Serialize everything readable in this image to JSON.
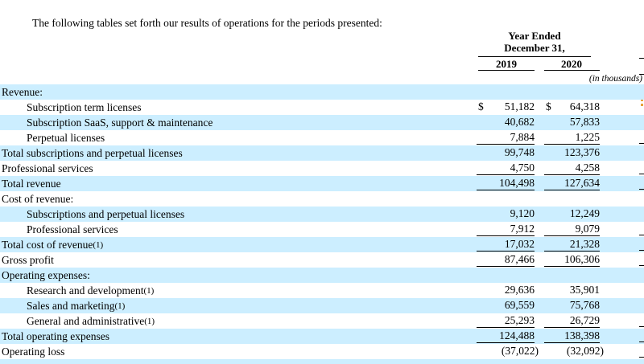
{
  "intro": "The following tables set forth our results of operations for the periods presented:",
  "table": {
    "currency_symbol": "$",
    "header": {
      "period_line1": "Year Ended",
      "period_line2": "December 31,",
      "units_note": "(in thousands)"
    },
    "columns": [
      "2019",
      "2020"
    ],
    "rows": [
      {
        "label": "Revenue:",
        "indent": 0,
        "shaded": true,
        "v2019": "",
        "v2020": ""
      },
      {
        "label": "Subscription term licenses",
        "indent": 1,
        "shaded": false,
        "dollar": true,
        "v2019": "51,182",
        "v2020": "64,318"
      },
      {
        "label": "Subscription SaaS, support & maintenance",
        "indent": 1,
        "shaded": true,
        "v2019": "40,682",
        "v2020": "57,833"
      },
      {
        "label": "Perpetual licenses",
        "indent": 1,
        "shaded": false,
        "rule_below": true,
        "v2019": "7,884",
        "v2020": "1,225"
      },
      {
        "label": "Total subscriptions and perpetual licenses",
        "indent": 0,
        "shaded": true,
        "v2019": "99,748",
        "v2020": "123,376"
      },
      {
        "label": "Professional services",
        "indent": 0,
        "shaded": false,
        "rule_below": true,
        "v2019": "4,750",
        "v2020": "4,258"
      },
      {
        "label": "Total revenue",
        "indent": 0,
        "shaded": true,
        "rule_below": true,
        "v2019": "104,498",
        "v2020": "127,634"
      },
      {
        "label": "Cost of revenue:",
        "indent": 0,
        "shaded": false,
        "v2019": "",
        "v2020": ""
      },
      {
        "label": "Subscriptions and perpetual licenses",
        "indent": 1,
        "shaded": true,
        "v2019": "9,120",
        "v2020": "12,249"
      },
      {
        "label": "Professional services",
        "indent": 1,
        "shaded": false,
        "rule_below": true,
        "v2019": "7,912",
        "v2020": "9,079"
      },
      {
        "label": "Total cost of revenue",
        "footnote": "(1)",
        "indent": 0,
        "shaded": true,
        "rule_below": true,
        "v2019": "17,032",
        "v2020": "21,328"
      },
      {
        "label": "Gross profit",
        "indent": 0,
        "shaded": false,
        "rule_below": true,
        "v2019": "87,466",
        "v2020": "106,306"
      },
      {
        "label": "Operating expenses:",
        "indent": 0,
        "shaded": true,
        "v2019": "",
        "v2020": ""
      },
      {
        "label": "Research and development",
        "footnote": "(1)",
        "indent": 1,
        "shaded": false,
        "v2019": "29,636",
        "v2020": "35,901"
      },
      {
        "label": "Sales and marketing",
        "footnote": "(1)",
        "indent": 1,
        "shaded": true,
        "v2019": "69,559",
        "v2020": "75,768"
      },
      {
        "label": "General and administrative",
        "footnote": "(1)",
        "indent": 1,
        "shaded": false,
        "rule_below": true,
        "v2019": "25,293",
        "v2020": "26,729"
      },
      {
        "label": "Total operating expenses",
        "indent": 0,
        "shaded": true,
        "rule_below": true,
        "v2019": "124,488",
        "v2020": "138,398"
      },
      {
        "label": "Operating loss",
        "indent": 0,
        "shaded": false,
        "edge_rule": true,
        "v2019": "(37,022)",
        "v2020": "(32,092)"
      },
      {
        "label": "",
        "partial": true,
        "shaded": true,
        "v2019": "",
        "v2020": ""
      }
    ]
  },
  "colors": {
    "row_highlight": "#cceeff",
    "rule": "#000000",
    "clipped_fragment": "#e8a33c"
  }
}
